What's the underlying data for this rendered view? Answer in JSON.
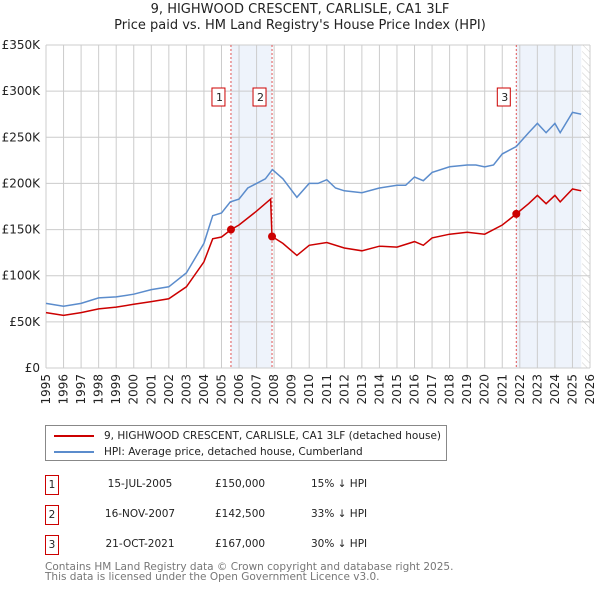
{
  "chart_data": {
    "type": "line",
    "title": "9, HIGHWOOD CRESCENT, CARLISLE, CA1 3LF",
    "subtitle": "Price paid vs. HM Land Registry's House Price Index (HPI)",
    "ylim": [
      0,
      350000
    ],
    "xlim": [
      1995,
      2026
    ],
    "yticks": [
      "£0",
      "£50K",
      "£100K",
      "£150K",
      "£200K",
      "£250K",
      "£300K",
      "£350K"
    ],
    "xticks": [
      "1995",
      "1996",
      "1997",
      "1998",
      "1999",
      "2000",
      "2001",
      "2002",
      "2003",
      "2004",
      "2005",
      "2006",
      "2007",
      "2008",
      "2009",
      "2010",
      "2011",
      "2012",
      "2013",
      "2014",
      "2015",
      "2016",
      "2017",
      "2018",
      "2019",
      "2020",
      "2021",
      "2022",
      "2023",
      "2024",
      "2025",
      "2026"
    ],
    "series": [
      {
        "name": "9, HIGHWOOD CRESCENT, CARLISLE, CA1 3LF (detached house)",
        "color": "#cc0000",
        "x": [
          1995,
          1996,
          1997,
          1998,
          1999,
          2000,
          2001,
          2002,
          2003,
          2004,
          2004.5,
          2005,
          2005.54,
          2006,
          2007,
          2007.8,
          2007.88,
          2008.5,
          2009.3,
          2010,
          2011,
          2012,
          2013,
          2014,
          2015,
          2016,
          2016.5,
          2017,
          2018,
          2019,
          2020,
          2021,
          2021.8,
          2022.5,
          2023,
          2023.5,
          2024,
          2024.3,
          2025,
          2025.5
        ],
        "y": [
          60,
          57,
          60,
          64,
          66,
          69,
          72,
          75,
          88,
          115,
          140,
          142,
          150,
          155,
          170,
          183,
          142.5,
          135,
          122,
          133,
          136,
          130,
          127,
          132,
          131,
          137,
          133,
          141,
          145,
          147,
          145,
          155,
          167,
          178,
          187,
          178,
          187,
          180,
          194,
          192
        ]
      },
      {
        "name": "HPI: Average price, detached house, Cumberland",
        "color": "#5b8ccc",
        "x": [
          1995,
          1996,
          1997,
          1998,
          1999,
          2000,
          2001,
          2002,
          2003,
          2004,
          2004.5,
          2005,
          2005.5,
          2006,
          2006.5,
          2007,
          2007.5,
          2007.9,
          2008.5,
          2009.3,
          2010,
          2010.5,
          2011,
          2011.5,
          2012,
          2013,
          2014,
          2015,
          2015.5,
          2016,
          2016.5,
          2017,
          2018,
          2019,
          2019.5,
          2020,
          2020.5,
          2021,
          2021.8,
          2022.5,
          2023,
          2023.5,
          2024,
          2024.3,
          2025,
          2025.5
        ],
        "y": [
          70,
          67,
          70,
          76,
          77,
          80,
          85,
          88,
          103,
          135,
          165,
          168,
          180,
          183,
          195,
          200,
          205,
          215,
          205,
          185,
          200,
          200,
          204,
          195,
          192,
          190,
          195,
          198,
          198,
          207,
          203,
          212,
          218,
          220,
          220,
          218,
          220,
          232,
          240,
          255,
          265,
          255,
          265,
          255,
          277,
          275
        ]
      }
    ],
    "y_units": "thousands GBP",
    "sales": [
      {
        "label": "1",
        "x": 2005.54,
        "y": 150
      },
      {
        "label": "2",
        "x": 2007.88,
        "y": 142.5
      },
      {
        "label": "3",
        "x": 2021.8,
        "y": 167
      }
    ],
    "shaded": [
      [
        2005.54,
        2007.88
      ],
      [
        2021.8,
        2025.5
      ]
    ],
    "hatched_from": 2025.55
  },
  "legend": [
    "9, HIGHWOOD CRESCENT, CARLISLE, CA1 3LF (detached house)",
    "HPI: Average price, detached house, Cumberland"
  ],
  "table": [
    {
      "num": "1",
      "date": "15-JUL-2005",
      "price": "£150,000",
      "hpi": "15% ↓ HPI"
    },
    {
      "num": "2",
      "date": "16-NOV-2007",
      "price": "£142,500",
      "hpi": "33% ↓ HPI"
    },
    {
      "num": "3",
      "date": "21-OCT-2021",
      "price": "£167,000",
      "hpi": "30% ↓ HPI"
    }
  ],
  "footer": [
    "Contains HM Land Registry data © Crown copyright and database right 2025.",
    "This data is licensed under the Open Government Licence v3.0."
  ]
}
